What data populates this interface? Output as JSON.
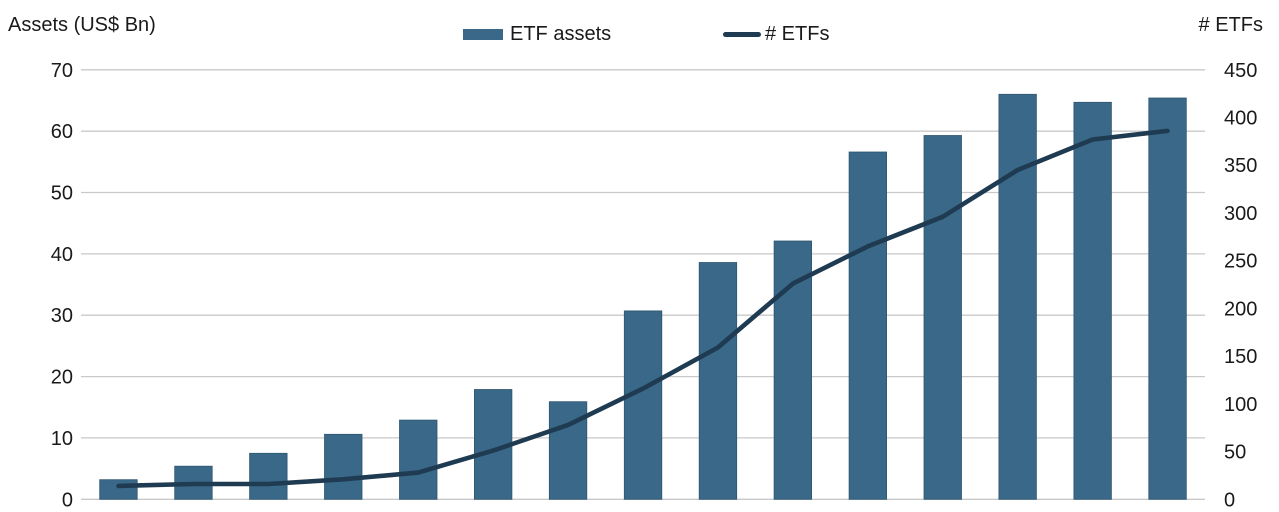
{
  "header": {
    "left_axis_title": "Assets (US$ Bn)",
    "right_axis_title": "# ETFs"
  },
  "colors": {
    "bar_fill": "#3A6889",
    "bar_edge": "#2E566F",
    "line_stroke": "#1F3B52",
    "gridline": "#C9C9C9",
    "text": "#1A1A1A"
  },
  "chart_data": {
    "type": "bar",
    "subtype": "combo-bar-line-dual-axis",
    "categories": [
      "",
      "",
      "",
      "",
      "",
      "",
      "",
      "",
      "",
      "",
      "",
      "",
      "",
      "",
      ""
    ],
    "x_axis": {
      "labels_visible": false,
      "n_points": 15
    },
    "series": [
      {
        "name": "ETF assets",
        "type": "bar",
        "axis": "left",
        "values": [
          3.2,
          5.4,
          7.5,
          10.6,
          12.9,
          17.9,
          15.9,
          30.7,
          38.6,
          42.1,
          56.6,
          59.3,
          66,
          64.7,
          65.4
        ]
      },
      {
        "name": "# ETFs",
        "type": "line",
        "axis": "right",
        "values": [
          14,
          16,
          16,
          21,
          28,
          51,
          78,
          116,
          159,
          226,
          265,
          296,
          345,
          377,
          386
        ]
      }
    ],
    "left_axis": {
      "title": "Assets (US$ Bn)",
      "min": 0,
      "max": 70,
      "step": 10,
      "ticks": [
        0,
        10,
        20,
        30,
        40,
        50,
        60,
        70
      ]
    },
    "right_axis": {
      "title": "# ETFs",
      "min": 0,
      "max": 450,
      "step": 50,
      "ticks": [
        0,
        50,
        100,
        150,
        200,
        250,
        300,
        350,
        400,
        450
      ]
    },
    "grid": "horizontal",
    "legend_position": "top-center",
    "legend": [
      "ETF assets",
      "# ETFs"
    ]
  }
}
